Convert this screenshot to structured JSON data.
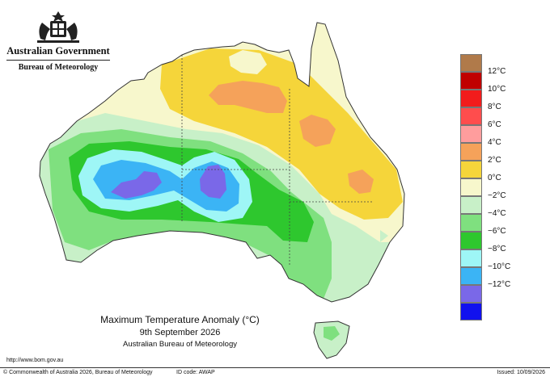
{
  "header": {
    "government": "Australian Government",
    "agency": "Bureau of Meteorology"
  },
  "map": {
    "title": "Maximum Temperature Anomaly (°C)",
    "date": "9th September 2026",
    "source": "Australian Bureau of Meteorology"
  },
  "legend": {
    "items": [
      {
        "label": "",
        "color": "#b07a4a"
      },
      {
        "label": "12°C",
        "color": "#c00000"
      },
      {
        "label": "10°C",
        "color": "#f21c1c"
      },
      {
        "label": "8°C",
        "color": "#ff4d4d"
      },
      {
        "label": "6°C",
        "color": "#ff9d9d"
      },
      {
        "label": "4°C",
        "color": "#f5a25a"
      },
      {
        "label": "2°C",
        "color": "#f5d53a"
      },
      {
        "label": "0°C",
        "color": "#f7f7cc"
      },
      {
        "label": "−2°C",
        "color": "#c8f0c8"
      },
      {
        "label": "−4°C",
        "color": "#7fe07f"
      },
      {
        "label": "−6°C",
        "color": "#2ec72e"
      },
      {
        "label": "−8°C",
        "color": "#9ef6f6"
      },
      {
        "label": "−10°C",
        "color": "#3bb4f5"
      },
      {
        "label": "−12°C",
        "color": "#7a68e8"
      },
      {
        "label": "",
        "color": "#1111ee"
      }
    ]
  },
  "footer": {
    "url": "http://www.bom.gov.au",
    "copyright": "© Commonwealth of Australia 2026, Bureau of Meteorology",
    "id_code": "ID code: AWAP",
    "issued": "Issued: 10/09/2026"
  }
}
